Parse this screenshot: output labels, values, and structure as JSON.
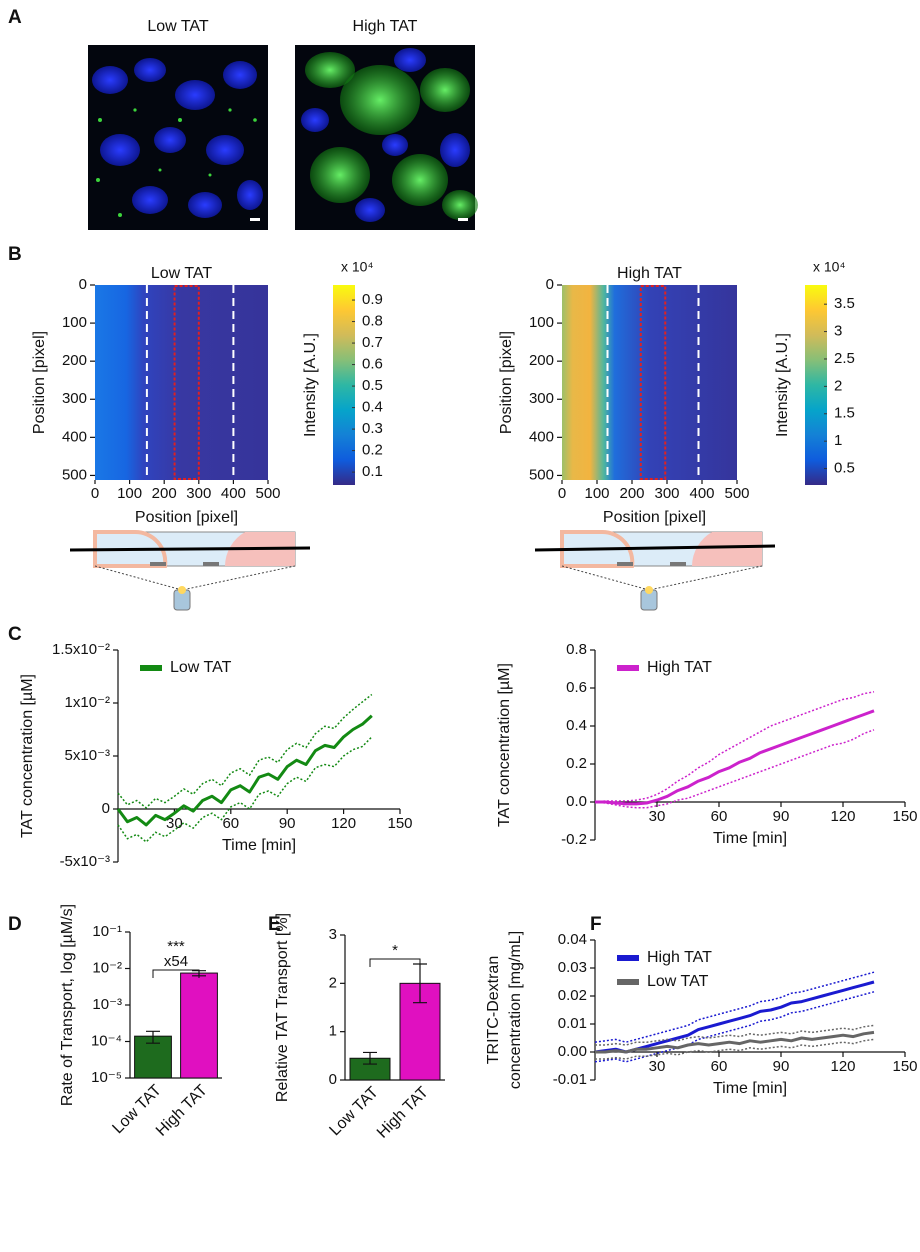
{
  "panel_labels": [
    "A",
    "B",
    "C",
    "D",
    "E",
    "F"
  ],
  "panel_a": {
    "images": [
      {
        "title": "Low TAT"
      },
      {
        "title": "High TAT"
      }
    ]
  },
  "chart_data": [
    {
      "type": "heatmap",
      "title": "Low TAT",
      "xlabel": "Position [pixel]",
      "ylabel": "Position [pixel]",
      "xlim": [
        0,
        500
      ],
      "xticks": [
        0,
        100,
        200,
        300,
        400,
        500
      ],
      "ylim": [
        0,
        512
      ],
      "yticks": [
        0,
        100,
        200,
        300,
        400,
        500
      ],
      "y_inverted": true,
      "dashed_lines": [
        150,
        400
      ],
      "roi": [
        230,
        300
      ],
      "colorbar": {
        "label": "Intensity [A.U.]",
        "multiplier": "x 10⁴",
        "lim": [
          0.04,
          0.97
        ],
        "ticks": [
          0.1,
          0.2,
          0.3,
          0.4,
          0.5,
          0.6,
          0.7,
          0.8,
          0.9
        ],
        "colormap": [
          "#352a87",
          "#0f5cdd",
          "#1481d6",
          "#06a4ca",
          "#2eb7a4",
          "#87bf77",
          "#d1bb59",
          "#fec832",
          "#f9fb0e"
        ]
      }
    },
    {
      "type": "heatmap",
      "title": "High TAT",
      "xlabel": "Position [pixel]",
      "ylabel": "Position [pixel]",
      "xlim": [
        0,
        500
      ],
      "xticks": [
        0,
        100,
        200,
        300,
        400,
        500
      ],
      "ylim": [
        0,
        512
      ],
      "yticks": [
        0,
        100,
        200,
        300,
        400,
        500
      ],
      "y_inverted": true,
      "dashed_lines": [
        130,
        390
      ],
      "roi": [
        225,
        295
      ],
      "colorbar": {
        "label": "Intensity [A.U.]",
        "multiplier": "x 10⁴",
        "lim": [
          0.2,
          3.85
        ],
        "ticks": [
          0.5,
          1,
          1.5,
          2,
          2.5,
          3,
          3.5
        ],
        "colormap": [
          "#352a87",
          "#0f5cdd",
          "#1481d6",
          "#06a4ca",
          "#2eb7a4",
          "#87bf77",
          "#d1bb59",
          "#fec832",
          "#f9fb0e"
        ]
      }
    },
    {
      "type": "line",
      "xlabel": "Time [min]",
      "ylabel": "TAT concentration [µM]",
      "xlim": [
        0,
        150
      ],
      "xticks": [
        30,
        60,
        90,
        120,
        150
      ],
      "ylim": [
        -0.005,
        0.015
      ],
      "yticks": [
        {
          "value": -0.005,
          "label": "-5x10⁻³"
        },
        0,
        {
          "value": 0.005,
          "label": "5x10⁻³"
        },
        {
          "value": 0.01,
          "label": "1x10⁻²"
        },
        {
          "value": 0.015,
          "label": "1.5x10⁻²"
        }
      ],
      "x": [
        0,
        5,
        10,
        15,
        20,
        25,
        30,
        35,
        40,
        45,
        50,
        55,
        60,
        65,
        70,
        75,
        80,
        85,
        90,
        95,
        100,
        105,
        110,
        115,
        120,
        125,
        130,
        135
      ],
      "series": [
        {
          "name": "Low TAT",
          "color": "#138a13",
          "values": [
            0,
            -0.0012,
            -0.0008,
            -0.0015,
            -0.0006,
            -0.001,
            -0.0004,
            0.0003,
            -0.0002,
            0.0008,
            0.0012,
            0.0006,
            0.0018,
            0.0022,
            0.0016,
            0.003,
            0.0033,
            0.0028,
            0.004,
            0.0046,
            0.0042,
            0.0055,
            0.006,
            0.0058,
            0.0068,
            0.0075,
            0.008,
            0.0088
          ],
          "upper": [
            0.0015,
            0.0004,
            0.0008,
            0.0001,
            0.001,
            0.0006,
            0.0012,
            0.0019,
            0.0014,
            0.0024,
            0.0028,
            0.0022,
            0.0034,
            0.0038,
            0.0032,
            0.0046,
            0.0049,
            0.0044,
            0.0056,
            0.0062,
            0.0058,
            0.0071,
            0.0078,
            0.0076,
            0.0086,
            0.0094,
            0.0101,
            0.0108
          ],
          "lower": [
            -0.0015,
            -0.0028,
            -0.0024,
            -0.0031,
            -0.0022,
            -0.0026,
            -0.002,
            -0.0013,
            -0.0018,
            -0.0008,
            -0.0004,
            -0.001,
            0.0002,
            0.0006,
            0,
            0.0014,
            0.0017,
            0.0012,
            0.0024,
            0.003,
            0.0026,
            0.0039,
            0.0042,
            0.004,
            0.005,
            0.0056,
            0.0059,
            0.0068
          ]
        }
      ]
    },
    {
      "type": "line",
      "xlabel": "Time [min]",
      "ylabel": "TAT concentration [µM]",
      "xlim": [
        0,
        150
      ],
      "xticks": [
        30,
        60,
        90,
        120,
        150
      ],
      "ylim": [
        -0.2,
        0.8
      ],
      "yticks": [
        -0.2,
        {
          "value": 0,
          "label": "0.0"
        },
        0.2,
        0.4,
        0.6,
        0.8
      ],
      "x": [
        0,
        5,
        10,
        15,
        20,
        25,
        30,
        35,
        40,
        45,
        50,
        55,
        60,
        65,
        70,
        75,
        80,
        85,
        90,
        95,
        100,
        105,
        110,
        115,
        120,
        125,
        130,
        135
      ],
      "series": [
        {
          "name": "High TAT",
          "color": "#cc22cc",
          "values": [
            0,
            0,
            -0.005,
            -0.01,
            -0.01,
            -0.005,
            0.01,
            0.03,
            0.06,
            0.08,
            0.11,
            0.13,
            0.16,
            0.18,
            0.21,
            0.23,
            0.26,
            0.28,
            0.3,
            0.32,
            0.34,
            0.36,
            0.38,
            0.4,
            0.42,
            0.44,
            0.46,
            0.48
          ],
          "upper": [
            0,
            0.005,
            0.005,
            0.005,
            0.01,
            0.02,
            0.04,
            0.07,
            0.11,
            0.14,
            0.18,
            0.21,
            0.25,
            0.28,
            0.31,
            0.34,
            0.37,
            0.4,
            0.42,
            0.44,
            0.46,
            0.48,
            0.5,
            0.52,
            0.54,
            0.55,
            0.57,
            0.58
          ],
          "lower": [
            0,
            -0.005,
            -0.015,
            -0.025,
            -0.03,
            -0.03,
            -0.02,
            -0.01,
            0.01,
            0.02,
            0.04,
            0.06,
            0.08,
            0.1,
            0.12,
            0.14,
            0.16,
            0.18,
            0.2,
            0.22,
            0.24,
            0.26,
            0.28,
            0.3,
            0.31,
            0.33,
            0.36,
            0.38
          ]
        }
      ]
    },
    {
      "type": "bar",
      "log_scale": true,
      "ylabel": "Rate of Transport, log [µM/s]",
      "categories": [
        "Low TAT",
        "High TAT"
      ],
      "values": [
        0.00014,
        0.0075
      ],
      "errors": [
        5e-05,
        0.0012
      ],
      "colors": [
        "#1e6b1e",
        "#e010c0"
      ],
      "ylim": [
        1e-05,
        0.1
      ],
      "yticks": [
        {
          "value": 1e-05,
          "label": "10⁻⁵"
        },
        {
          "value": 0.0001,
          "label": "10⁻⁴"
        },
        {
          "value": 0.001,
          "label": "10⁻³"
        },
        {
          "value": 0.01,
          "label": "10⁻²"
        },
        {
          "value": 0.1,
          "label": "10⁻¹"
        }
      ],
      "annotations": [
        "***",
        "x54"
      ]
    },
    {
      "type": "bar",
      "ylabel": "Relative TAT Transport [%]",
      "categories": [
        "Low TAT",
        "High TAT"
      ],
      "values": [
        0.45,
        2.0
      ],
      "errors": [
        0.12,
        0.4
      ],
      "colors": [
        "#1e6b1e",
        "#e010c0"
      ],
      "ylim": [
        0,
        3
      ],
      "yticks": [
        0,
        1,
        2,
        3
      ],
      "annotations": [
        "*"
      ]
    },
    {
      "type": "line",
      "xlabel": "Time [min]",
      "ylabel": [
        "TRITC-Dextran",
        "concentration [mg/mL]"
      ],
      "xlim": [
        0,
        150
      ],
      "xticks": [
        30,
        60,
        90,
        120,
        150
      ],
      "ylim": [
        -0.01,
        0.04
      ],
      "yticks": [
        -0.01,
        {
          "value": 0,
          "label": "0.00"
        },
        0.01,
        0.02,
        0.03,
        0.04
      ],
      "x": [
        0,
        5,
        10,
        15,
        20,
        25,
        30,
        35,
        40,
        45,
        50,
        55,
        60,
        65,
        70,
        75,
        80,
        85,
        90,
        95,
        100,
        105,
        110,
        115,
        120,
        125,
        130,
        135
      ],
      "series": [
        {
          "name": "High TAT",
          "color": "#1a1ad0",
          "values": [
            0,
            0.0005,
            0.001,
            0,
            0.001,
            0.002,
            0.003,
            0.004,
            0.005,
            0.006,
            0.008,
            0.009,
            0.01,
            0.011,
            0.012,
            0.013,
            0.0145,
            0.015,
            0.016,
            0.0175,
            0.018,
            0.019,
            0.02,
            0.021,
            0.022,
            0.023,
            0.024,
            0.025
          ],
          "upper": [
            0.0035,
            0.004,
            0.0045,
            0.0035,
            0.0045,
            0.0055,
            0.0065,
            0.0075,
            0.0085,
            0.0095,
            0.0115,
            0.0125,
            0.0135,
            0.0145,
            0.0155,
            0.0165,
            0.018,
            0.0185,
            0.0195,
            0.021,
            0.0215,
            0.0225,
            0.0235,
            0.0245,
            0.0255,
            0.0265,
            0.0275,
            0.0285
          ],
          "lower": [
            -0.0035,
            -0.003,
            -0.0025,
            -0.0035,
            -0.0025,
            -0.0015,
            -0.0005,
            0.0005,
            0.0015,
            0.0025,
            0.0045,
            0.0055,
            0.0065,
            0.0075,
            0.0085,
            0.0095,
            0.011,
            0.0115,
            0.0125,
            0.014,
            0.0145,
            0.0155,
            0.0165,
            0.0175,
            0.0185,
            0.0195,
            0.0205,
            0.0215
          ]
        },
        {
          "name": "Low TAT",
          "color": "#666666",
          "values": [
            0,
            0,
            0.0005,
            0,
            0.001,
            0.001,
            0.0015,
            0.002,
            0.0015,
            0.0025,
            0.003,
            0.0025,
            0.003,
            0.0035,
            0.003,
            0.004,
            0.0035,
            0.004,
            0.0045,
            0.004,
            0.005,
            0.0045,
            0.005,
            0.0055,
            0.006,
            0.0055,
            0.0065,
            0.007
          ],
          "upper": [
            0.0025,
            0.0025,
            0.003,
            0.0025,
            0.0035,
            0.0035,
            0.004,
            0.0045,
            0.004,
            0.005,
            0.0055,
            0.005,
            0.0055,
            0.006,
            0.0055,
            0.0065,
            0.006,
            0.0065,
            0.007,
            0.0065,
            0.0075,
            0.007,
            0.0075,
            0.008,
            0.0085,
            0.008,
            0.009,
            0.0095
          ],
          "lower": [
            -0.0025,
            -0.0025,
            -0.002,
            -0.0025,
            -0.0015,
            -0.0015,
            -0.001,
            -0.0005,
            -0.001,
            0,
            0.0005,
            0,
            0.0005,
            0.001,
            0.0005,
            0.0015,
            0.001,
            0.0015,
            0.002,
            0.0015,
            0.0025,
            0.002,
            0.0025,
            0.003,
            0.0035,
            0.003,
            0.004,
            0.0045
          ]
        }
      ]
    }
  ]
}
